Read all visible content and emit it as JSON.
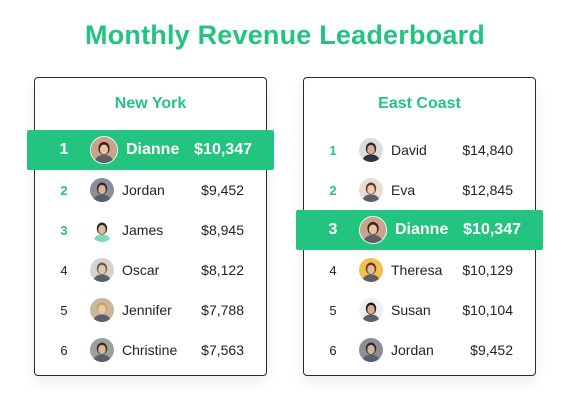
{
  "title": "Monthly Revenue Leaderboard",
  "colors": {
    "accent": "#22c47f",
    "text": "#222222"
  },
  "boards": [
    {
      "title": "New York",
      "rows": [
        {
          "rank": "1",
          "name": "Dianne",
          "amount": "$10,347",
          "highlight": true,
          "avatar": "woman-dark-hair-icon"
        },
        {
          "rank": "2",
          "name": "Jordan",
          "amount": "$9,452",
          "avatar": "man-beard-icon"
        },
        {
          "rank": "3",
          "name": "James",
          "amount": "$8,945",
          "avatar": "man-smiling-icon"
        },
        {
          "rank": "4",
          "name": "Oscar",
          "amount": "$8,122",
          "avatar": "man-light-icon"
        },
        {
          "rank": "5",
          "name": "Jennifer",
          "amount": "$7,788",
          "avatar": "woman-blonde-icon"
        },
        {
          "rank": "6",
          "name": "Christine",
          "amount": "$7,563",
          "avatar": "woman-outdoor-icon"
        }
      ]
    },
    {
      "title": "East Coast",
      "rows": [
        {
          "rank": "1",
          "name": "David",
          "amount": "$14,840",
          "avatar": "man-suit-icon"
        },
        {
          "rank": "2",
          "name": "Eva",
          "amount": "$12,845",
          "avatar": "woman-light-icon"
        },
        {
          "rank": "3",
          "name": "Dianne",
          "amount": "$10,347",
          "highlight": true,
          "avatar": "woman-dark-hair-icon"
        },
        {
          "rank": "4",
          "name": "Theresa",
          "amount": "$10,129",
          "avatar": "woman-yellow-bg-icon"
        },
        {
          "rank": "5",
          "name": "Susan",
          "amount": "$10,104",
          "avatar": "woman-dark-icon"
        },
        {
          "rank": "6",
          "name": "Jordan",
          "amount": "$9,452",
          "avatar": "man-beard-icon"
        }
      ]
    }
  ]
}
